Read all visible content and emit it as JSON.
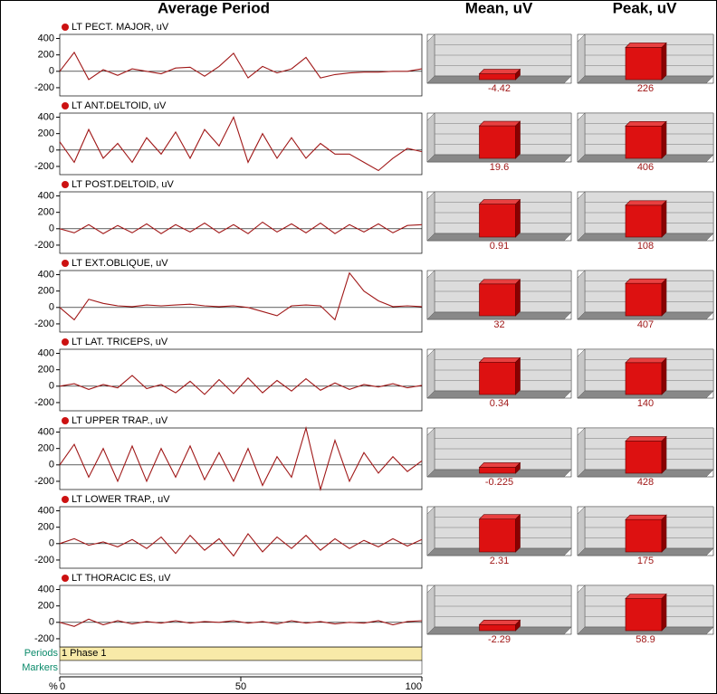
{
  "title": "Average Period",
  "mean_header": "Mean, uV",
  "peak_header": "Peak, uV",
  "periods_label": "Periods",
  "markers_label": "Markers",
  "period_name": "1 Phase 1",
  "xaxis": {
    "label": "%",
    "xlim": [
      0,
      100
    ],
    "xticks": [
      0,
      50,
      100
    ]
  },
  "chart_data": [
    {
      "type": "line",
      "title": "LT PECT. MAJOR, uV",
      "color": "#a01818",
      "ylim": [
        -300,
        450
      ],
      "yticks": [
        -200,
        0,
        200,
        400
      ],
      "x": [
        0,
        4,
        8,
        12,
        16,
        20,
        24,
        28,
        32,
        36,
        40,
        44,
        48,
        52,
        56,
        60,
        64,
        68,
        72,
        76,
        80,
        84,
        88,
        92,
        96,
        100
      ],
      "values": [
        0,
        230,
        -100,
        20,
        -50,
        30,
        0,
        -30,
        40,
        50,
        -60,
        60,
        220,
        -80,
        60,
        -20,
        30,
        170,
        -80,
        -40,
        -20,
        -10,
        -10,
        0,
        0,
        30
      ],
      "mean": {
        "value": -4.42,
        "ylim": [
          -30,
          0
        ]
      },
      "peak": {
        "value": 226,
        "ylim": [
          0,
          280
        ]
      }
    },
    {
      "type": "line",
      "title": "LT ANT.DELTOID, uV",
      "color": "#a01818",
      "ylim": [
        -300,
        450
      ],
      "yticks": [
        -200,
        0,
        200,
        400
      ],
      "x": [
        0,
        4,
        8,
        12,
        16,
        20,
        24,
        28,
        32,
        36,
        40,
        44,
        48,
        52,
        56,
        60,
        64,
        68,
        72,
        76,
        80,
        84,
        88,
        92,
        96,
        100
      ],
      "values": [
        100,
        -150,
        250,
        -100,
        80,
        -150,
        150,
        -50,
        220,
        -100,
        250,
        50,
        400,
        -150,
        200,
        -100,
        150,
        -100,
        80,
        -50,
        -50,
        -150,
        -250,
        -100,
        20,
        -20
      ],
      "mean": {
        "value": 19.6,
        "ylim": [
          0,
          24
        ]
      },
      "peak": {
        "value": 406,
        "ylim": [
          0,
          500
        ]
      }
    },
    {
      "type": "line",
      "title": "LT POST.DELTOID, uV",
      "color": "#a01818",
      "ylim": [
        -300,
        450
      ],
      "yticks": [
        -200,
        0,
        200,
        400
      ],
      "x": [
        0,
        4,
        8,
        12,
        16,
        20,
        24,
        28,
        32,
        36,
        40,
        44,
        48,
        52,
        56,
        60,
        64,
        68,
        72,
        76,
        80,
        84,
        88,
        92,
        96,
        100
      ],
      "values": [
        0,
        -50,
        50,
        -60,
        40,
        -50,
        60,
        -60,
        50,
        -40,
        70,
        -50,
        50,
        -60,
        80,
        -40,
        60,
        -50,
        70,
        -60,
        50,
        -40,
        60,
        -50,
        40,
        50
      ],
      "mean": {
        "value": 0.91,
        "ylim": [
          0,
          1.1
        ]
      },
      "peak": {
        "value": 108,
        "ylim": [
          0,
          135
        ]
      }
    },
    {
      "type": "line",
      "title": "LT EXT.OBLIQUE, uV",
      "color": "#a01818",
      "ylim": [
        -300,
        450
      ],
      "yticks": [
        -200,
        0,
        200,
        400
      ],
      "x": [
        0,
        4,
        8,
        12,
        16,
        20,
        24,
        28,
        32,
        36,
        40,
        44,
        48,
        52,
        56,
        60,
        64,
        68,
        72,
        76,
        80,
        84,
        88,
        92,
        96,
        100
      ],
      "values": [
        0,
        -150,
        100,
        50,
        20,
        10,
        30,
        20,
        30,
        40,
        20,
        10,
        20,
        0,
        -50,
        -100,
        20,
        30,
        20,
        -150,
        420,
        200,
        80,
        10,
        20,
        10
      ],
      "mean": {
        "value": 32,
        "ylim": [
          0,
          40
        ]
      },
      "peak": {
        "value": 407,
        "ylim": [
          0,
          500
        ]
      }
    },
    {
      "type": "line",
      "title": "LT LAT. TRICEPS, uV",
      "color": "#a01818",
      "ylim": [
        -300,
        450
      ],
      "yticks": [
        -200,
        0,
        200,
        400
      ],
      "x": [
        0,
        4,
        8,
        12,
        16,
        20,
        24,
        28,
        32,
        36,
        40,
        44,
        48,
        52,
        56,
        60,
        64,
        68,
        72,
        76,
        80,
        84,
        88,
        92,
        96,
        100
      ],
      "values": [
        0,
        30,
        -40,
        20,
        -20,
        130,
        -30,
        20,
        -80,
        60,
        -100,
        80,
        -90,
        100,
        -80,
        70,
        -60,
        90,
        -50,
        40,
        -40,
        20,
        -10,
        30,
        -20,
        10
      ],
      "mean": {
        "value": 0.34,
        "ylim": [
          0,
          0.42
        ]
      },
      "peak": {
        "value": 140,
        "ylim": [
          0,
          175
        ]
      }
    },
    {
      "type": "line",
      "title": "LT UPPER TRAP., uV",
      "color": "#a01818",
      "ylim": [
        -300,
        450
      ],
      "yticks": [
        -200,
        0,
        200,
        400
      ],
      "x": [
        0,
        4,
        8,
        12,
        16,
        20,
        24,
        28,
        32,
        36,
        40,
        44,
        48,
        52,
        56,
        60,
        64,
        68,
        72,
        76,
        80,
        84,
        88,
        92,
        96,
        100
      ],
      "values": [
        0,
        250,
        -150,
        200,
        -200,
        230,
        -200,
        200,
        -150,
        230,
        -180,
        150,
        -200,
        200,
        -250,
        100,
        -150,
        450,
        -300,
        300,
        -200,
        150,
        -100,
        100,
        -80,
        50
      ],
      "mean": {
        "value": -0.225,
        "ylim": [
          -1.5,
          0
        ]
      },
      "peak": {
        "value": 428,
        "ylim": [
          0,
          530
        ]
      }
    },
    {
      "type": "line",
      "title": "LT LOWER TRAP., uV",
      "color": "#a01818",
      "ylim": [
        -300,
        450
      ],
      "yticks": [
        -200,
        0,
        200,
        400
      ],
      "x": [
        0,
        4,
        8,
        12,
        16,
        20,
        24,
        28,
        32,
        36,
        40,
        44,
        48,
        52,
        56,
        60,
        64,
        68,
        72,
        76,
        80,
        84,
        88,
        92,
        96,
        100
      ],
      "values": [
        0,
        60,
        -20,
        20,
        -40,
        50,
        -60,
        80,
        -120,
        100,
        -80,
        60,
        -150,
        120,
        -100,
        80,
        -60,
        100,
        -80,
        60,
        -60,
        40,
        -40,
        60,
        -30,
        50
      ],
      "mean": {
        "value": 2.31,
        "ylim": [
          0,
          2.8
        ]
      },
      "peak": {
        "value": 175,
        "ylim": [
          0,
          215
        ]
      }
    },
    {
      "type": "line",
      "title": "LT THORACIC ES, uV",
      "color": "#a01818",
      "ylim": [
        -300,
        450
      ],
      "yticks": [
        -200,
        0,
        200,
        400
      ],
      "x": [
        0,
        4,
        8,
        12,
        16,
        20,
        24,
        28,
        32,
        36,
        40,
        44,
        48,
        52,
        56,
        60,
        64,
        68,
        72,
        76,
        80,
        84,
        88,
        92,
        96,
        100
      ],
      "values": [
        0,
        -50,
        40,
        -30,
        20,
        -20,
        10,
        -10,
        20,
        -10,
        10,
        0,
        20,
        -10,
        10,
        -20,
        20,
        -10,
        10,
        -20,
        0,
        -10,
        20,
        -30,
        10,
        20
      ],
      "mean": {
        "value": -2.29,
        "ylim": [
          -15,
          0
        ]
      },
      "peak": {
        "value": 58.9,
        "ylim": [
          0,
          73
        ]
      }
    }
  ]
}
